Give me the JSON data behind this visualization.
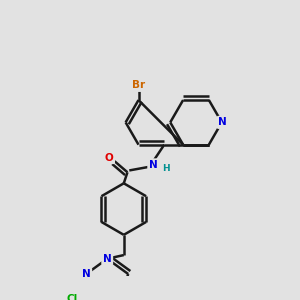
{
  "bg_color": "#e2e2e2",
  "bond_color": "#1a1a1a",
  "bond_width": 1.8,
  "atom_colors": {
    "N": "#0000e0",
    "O": "#e00000",
    "Br": "#cc6600",
    "Cl": "#00aa00",
    "H": "#009090",
    "C": "#1a1a1a"
  },
  "font_size": 7.5
}
